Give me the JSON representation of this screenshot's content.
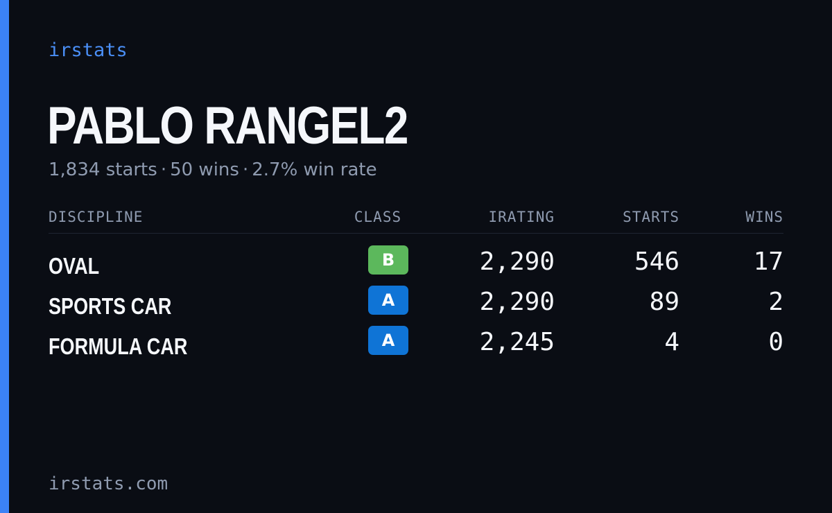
{
  "brand": "irstats",
  "driver": {
    "name": "PABLO RANGEL2",
    "starts": "1,834 starts",
    "wins": "50 wins",
    "win_rate": "2.7% win rate",
    "separator": "·"
  },
  "table": {
    "headers": {
      "discipline": "DISCIPLINE",
      "class": "CLASS",
      "irating": "IRATING",
      "starts": "STARTS",
      "wins": "WINS"
    },
    "rows": [
      {
        "discipline": "OVAL",
        "class": "B",
        "class_color": "#5cb85c",
        "irating": "2,290",
        "starts": "546",
        "wins": "17"
      },
      {
        "discipline": "SPORTS CAR",
        "class": "A",
        "class_color": "#0f74d6",
        "irating": "2,290",
        "starts": "89",
        "wins": "2"
      },
      {
        "discipline": "FORMULA CAR",
        "class": "A",
        "class_color": "#0f74d6",
        "irating": "2,245",
        "starts": "4",
        "wins": "0"
      }
    ]
  },
  "footer": "irstats.com",
  "colors": {
    "background": "#0a0d14",
    "accent": "#3b82f6",
    "brand_text": "#4a8ef5",
    "muted_text": "#8f9bb0",
    "primary_text": "#f5f7fb"
  }
}
